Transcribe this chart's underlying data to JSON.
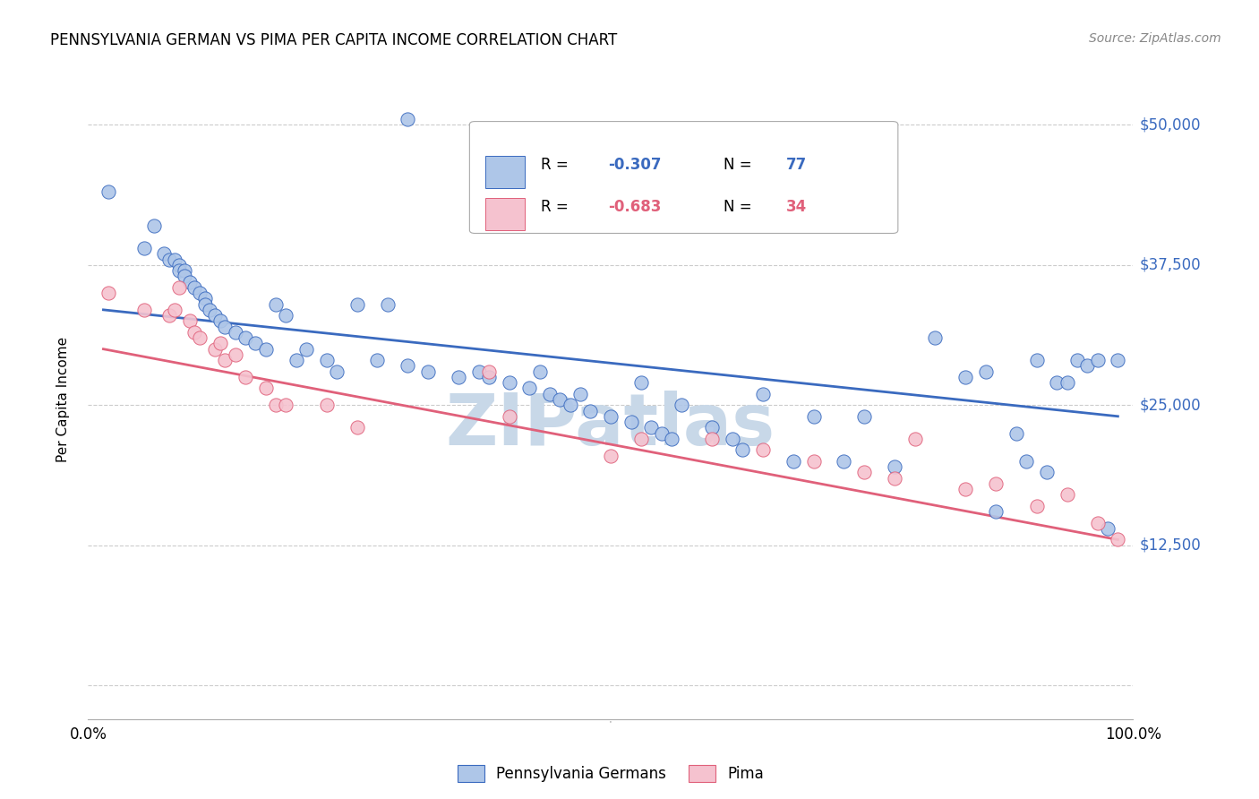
{
  "title": "PENNSYLVANIA GERMAN VS PIMA PER CAPITA INCOME CORRELATION CHART",
  "source": "Source: ZipAtlas.com",
  "ylabel": "Per Capita Income",
  "yticks": [
    0,
    12500,
    25000,
    37500,
    50000
  ],
  "ytick_labels": [
    "",
    "$12,500",
    "$25,000",
    "$37,500",
    "$50,000"
  ],
  "legend_label_blue": "Pennsylvania Germans",
  "legend_label_pink": "Pima",
  "blue_color": "#aec6e8",
  "blue_line_color": "#3a6abf",
  "pink_color": "#f5c2cf",
  "pink_line_color": "#e0607a",
  "watermark_text": "ZIPatlas",
  "watermark_color": "#c8d8e8",
  "blue_R_text": "R = -0.307",
  "blue_N_text": "N = 77",
  "pink_R_text": "R = -0.683",
  "pink_N_text": "N = 34",
  "blue_scatter_x": [
    0.005,
    0.04,
    0.05,
    0.06,
    0.065,
    0.07,
    0.075,
    0.075,
    0.08,
    0.08,
    0.085,
    0.09,
    0.095,
    0.1,
    0.1,
    0.105,
    0.11,
    0.115,
    0.12,
    0.13,
    0.14,
    0.15,
    0.16,
    0.17,
    0.18,
    0.19,
    0.2,
    0.22,
    0.23,
    0.25,
    0.27,
    0.28,
    0.3,
    0.32,
    0.35,
    0.37,
    0.38,
    0.4,
    0.42,
    0.43,
    0.44,
    0.45,
    0.46,
    0.47,
    0.48,
    0.5,
    0.52,
    0.53,
    0.54,
    0.55,
    0.56,
    0.57,
    0.6,
    0.62,
    0.63,
    0.65,
    0.68,
    0.7,
    0.73,
    0.75,
    0.78,
    0.82,
    0.85,
    0.87,
    0.88,
    0.9,
    0.91,
    0.92,
    0.93,
    0.94,
    0.95,
    0.96,
    0.97,
    0.98,
    0.99,
    1.0,
    0.3
  ],
  "blue_scatter_y": [
    44000,
    39000,
    41000,
    38500,
    38000,
    38000,
    37500,
    37000,
    37000,
    36500,
    36000,
    35500,
    35000,
    34500,
    34000,
    33500,
    33000,
    32500,
    32000,
    31500,
    31000,
    30500,
    30000,
    34000,
    33000,
    29000,
    30000,
    29000,
    28000,
    34000,
    29000,
    34000,
    28500,
    28000,
    27500,
    28000,
    27500,
    27000,
    26500,
    28000,
    26000,
    25500,
    25000,
    26000,
    24500,
    24000,
    23500,
    27000,
    23000,
    22500,
    22000,
    25000,
    23000,
    22000,
    21000,
    26000,
    20000,
    24000,
    20000,
    24000,
    19500,
    31000,
    27500,
    28000,
    15500,
    22500,
    20000,
    29000,
    19000,
    27000,
    27000,
    29000,
    28500,
    29000,
    14000,
    29000,
    50500
  ],
  "pink_scatter_x": [
    0.005,
    0.04,
    0.065,
    0.07,
    0.075,
    0.085,
    0.09,
    0.095,
    0.11,
    0.115,
    0.12,
    0.13,
    0.14,
    0.16,
    0.17,
    0.18,
    0.22,
    0.25,
    0.38,
    0.4,
    0.5,
    0.53,
    0.6,
    0.65,
    0.7,
    0.75,
    0.78,
    0.8,
    0.85,
    0.88,
    0.92,
    0.95,
    0.98,
    1.0
  ],
  "pink_scatter_y": [
    35000,
    33500,
    33000,
    33500,
    35500,
    32500,
    31500,
    31000,
    30000,
    30500,
    29000,
    29500,
    27500,
    26500,
    25000,
    25000,
    25000,
    23000,
    28000,
    24000,
    20500,
    22000,
    22000,
    21000,
    20000,
    19000,
    18500,
    22000,
    17500,
    18000,
    16000,
    17000,
    14500,
    13000
  ],
  "blue_line_x": [
    0.0,
    1.0
  ],
  "blue_line_y": [
    33500,
    24000
  ],
  "pink_line_x": [
    0.0,
    1.0
  ],
  "pink_line_y": [
    30000,
    13000
  ],
  "xlim": [
    -0.015,
    1.015
  ],
  "ylim": [
    -3000,
    54000
  ],
  "grid_color": "#cccccc",
  "grid_linestyle": "--",
  "grid_linewidth": 0.8
}
